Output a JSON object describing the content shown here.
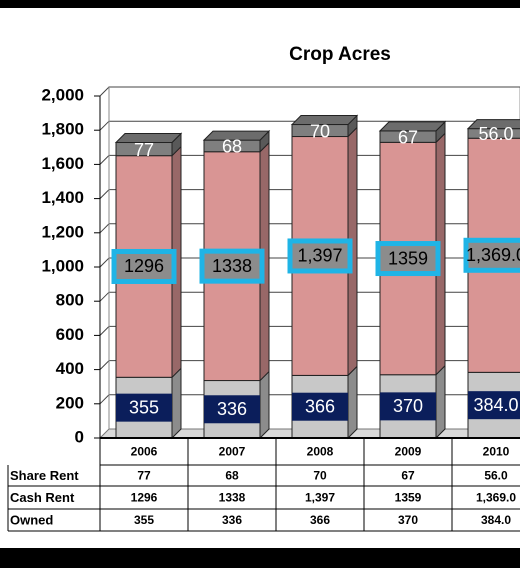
{
  "chart_data": {
    "type": "stacked-bar-3d",
    "title": "Crop Acres",
    "categories": [
      "2006",
      "2007",
      "2008",
      "2009",
      "2010"
    ],
    "series": [
      {
        "name": "Owned",
        "color": "#c8c8c8",
        "values": [
          355,
          336,
          366,
          370,
          384.0
        ],
        "value_labels": [
          "355",
          "336",
          "366",
          "370",
          "384.0"
        ]
      },
      {
        "name": "Cash Rent",
        "color": "#d99594",
        "values": [
          1296,
          1338,
          1397,
          1359,
          1369.0
        ],
        "value_labels": [
          "1296",
          "1338",
          "1,397",
          "1359",
          "1,369.0"
        ]
      },
      {
        "name": "Share Rent",
        "color": "#7f7f7f",
        "values": [
          77,
          68,
          70,
          67,
          56.0
        ],
        "value_labels": [
          "77",
          "68",
          "70",
          "67",
          "56.0"
        ]
      }
    ],
    "ylim": [
      0,
      2000
    ],
    "yticks": [
      0,
      200,
      400,
      600,
      800,
      {
        "value": 1000,
        "label": "1,000"
      },
      {
        "value": 1200,
        "label": "1,200"
      },
      {
        "value": 1400,
        "label": "1,400"
      },
      {
        "value": 1600,
        "label": "1,600"
      },
      {
        "value": 1800,
        "label": "1,800"
      },
      {
        "value": 2000,
        "label": "2,000"
      }
    ],
    "grid": true
  }
}
